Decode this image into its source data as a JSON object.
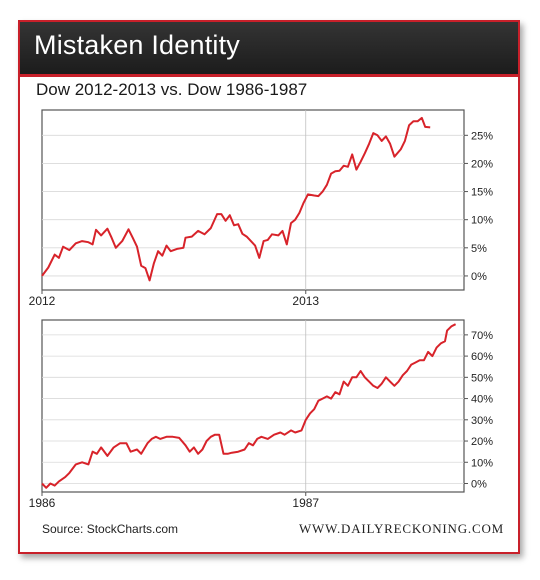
{
  "header": {
    "title": "Mistaken Identity"
  },
  "subtitle": "Dow 2012-2013 vs. Dow 1986-1987",
  "footer": {
    "source": "Source: StockCharts.com",
    "brand": "WWW.DAILYRECKONING.COM"
  },
  "colors": {
    "accent": "#c8202a",
    "line": "#d8232a",
    "header_bg": "#262626"
  },
  "chart_data": [
    {
      "type": "line",
      "title": "",
      "xlabel": "",
      "ylabel": "",
      "ylim": [
        -2.5,
        29.5
      ],
      "yticks": [
        0,
        5,
        10,
        15,
        20,
        25
      ],
      "ytick_labels": [
        "0%",
        "5%",
        "10%",
        "15%",
        "20%",
        "25%"
      ],
      "xlim": [
        0,
        100
      ],
      "x_tick_positions": [
        0,
        62.5
      ],
      "x_tick_labels": [
        "2012",
        "2013"
      ],
      "grid": true,
      "series": [
        {
          "values": [
            [
              0,
              0
            ],
            [
              1.5,
              1.5
            ],
            [
              3,
              3.8
            ],
            [
              4,
              3.2
            ],
            [
              5,
              5.2
            ],
            [
              6.5,
              4.6
            ],
            [
              8,
              5.8
            ],
            [
              9.5,
              6.2
            ],
            [
              11,
              6
            ],
            [
              12,
              5.6
            ],
            [
              12.8,
              8.2
            ],
            [
              14,
              7.2
            ],
            [
              15.5,
              8.4
            ],
            [
              16.5,
              6.8
            ],
            [
              17.5,
              5
            ],
            [
              19,
              6.2
            ],
            [
              20.5,
              8.3
            ],
            [
              21.5,
              6.8
            ],
            [
              22.5,
              5.2
            ],
            [
              23.5,
              1.8
            ],
            [
              24.5,
              1.4
            ],
            [
              25.5,
              -0.8
            ],
            [
              26.5,
              2.2
            ],
            [
              27.5,
              4.4
            ],
            [
              28.5,
              3.6
            ],
            [
              29.5,
              5.4
            ],
            [
              30.5,
              4.4
            ],
            [
              32,
              4.8
            ],
            [
              33.5,
              5
            ],
            [
              34,
              6.8
            ],
            [
              35.5,
              7
            ],
            [
              37,
              8
            ],
            [
              38.5,
              7.4
            ],
            [
              40,
              8.5
            ],
            [
              41.5,
              11
            ],
            [
              42.5,
              11
            ],
            [
              43.5,
              9.8
            ],
            [
              44.5,
              10.8
            ],
            [
              45.5,
              9
            ],
            [
              46.5,
              9.2
            ],
            [
              47.5,
              7.5
            ],
            [
              48.5,
              7
            ],
            [
              50.5,
              5.4
            ],
            [
              51.5,
              3.2
            ],
            [
              52.5,
              6.2
            ],
            [
              53.5,
              6.4
            ],
            [
              54.5,
              7.4
            ],
            [
              56,
              7.2
            ],
            [
              57,
              8
            ],
            [
              58,
              5.6
            ],
            [
              59,
              9.4
            ],
            [
              60,
              10
            ],
            [
              61,
              11.2
            ],
            [
              62,
              13
            ],
            [
              63,
              14.5
            ],
            [
              64.5,
              14.3
            ],
            [
              65.5,
              14.2
            ],
            [
              66.5,
              15
            ],
            [
              67.5,
              16.2
            ],
            [
              68.5,
              18.2
            ],
            [
              69.5,
              18.6
            ],
            [
              70.5,
              18.7
            ],
            [
              71.5,
              19.6
            ],
            [
              72.5,
              19.4
            ],
            [
              73.5,
              21.6
            ],
            [
              74.5,
              18.9
            ],
            [
              75.5,
              20.3
            ],
            [
              76.5,
              21.8
            ],
            [
              77.5,
              23.5
            ],
            [
              78.5,
              25.4
            ],
            [
              79.5,
              25
            ],
            [
              80.5,
              24
            ],
            [
              81.5,
              24.8
            ],
            [
              82.5,
              23.5
            ],
            [
              83.5,
              21.2
            ],
            [
              85,
              22.5
            ],
            [
              86,
              24
            ],
            [
              87,
              26.8
            ],
            [
              88,
              27.5
            ],
            [
              89,
              27.5
            ],
            [
              90,
              28.1
            ],
            [
              90.8,
              26.5
            ],
            [
              92,
              26.4
            ]
          ]
        }
      ]
    },
    {
      "type": "line",
      "title": "",
      "xlabel": "",
      "ylabel": "",
      "ylim": [
        -4,
        77
      ],
      "yticks": [
        0,
        10,
        20,
        30,
        40,
        50,
        60,
        70
      ],
      "ytick_labels": [
        "0%",
        "10%",
        "20%",
        "30%",
        "40%",
        "50%",
        "60%",
        "70%"
      ],
      "xlim": [
        0,
        100
      ],
      "x_tick_positions": [
        0,
        62.5
      ],
      "x_tick_labels": [
        "1986",
        "1987"
      ],
      "grid": true,
      "series": [
        {
          "values": [
            [
              0,
              0
            ],
            [
              1,
              -2
            ],
            [
              2,
              0
            ],
            [
              3,
              -1
            ],
            [
              4,
              1
            ],
            [
              5.5,
              3
            ],
            [
              6.5,
              5
            ],
            [
              8,
              9
            ],
            [
              9.5,
              10
            ],
            [
              11,
              9
            ],
            [
              12,
              15
            ],
            [
              13,
              14
            ],
            [
              14,
              17
            ],
            [
              15.5,
              13
            ],
            [
              17,
              17
            ],
            [
              18.5,
              19
            ],
            [
              20,
              19
            ],
            [
              21,
              15
            ],
            [
              22.5,
              16
            ],
            [
              23.5,
              14
            ],
            [
              25,
              19
            ],
            [
              26,
              21
            ],
            [
              27,
              22
            ],
            [
              28,
              21
            ],
            [
              29.5,
              22
            ],
            [
              31,
              22
            ],
            [
              32.5,
              21.5
            ],
            [
              34,
              18
            ],
            [
              35,
              15
            ],
            [
              36,
              17
            ],
            [
              37,
              14
            ],
            [
              38,
              16
            ],
            [
              39,
              20
            ],
            [
              40,
              22
            ],
            [
              41,
              23
            ],
            [
              42,
              23
            ],
            [
              43,
              14
            ],
            [
              44,
              14
            ],
            [
              45,
              14.5
            ],
            [
              46.5,
              15
            ],
            [
              48,
              16
            ],
            [
              49,
              19
            ],
            [
              50,
              18
            ],
            [
              51,
              21
            ],
            [
              52,
              22
            ],
            [
              53.5,
              21
            ],
            [
              55,
              23
            ],
            [
              56.5,
              24
            ],
            [
              57.5,
              23
            ],
            [
              59,
              25
            ],
            [
              60,
              24
            ],
            [
              61.5,
              25
            ],
            [
              62.5,
              30
            ],
            [
              63.5,
              33
            ],
            [
              64.5,
              35
            ],
            [
              65.5,
              39
            ],
            [
              66.5,
              40
            ],
            [
              67.5,
              41
            ],
            [
              68.5,
              40
            ],
            [
              69.5,
              43
            ],
            [
              70.5,
              42
            ],
            [
              71.5,
              48
            ],
            [
              72.5,
              46
            ],
            [
              73.5,
              50
            ],
            [
              74.5,
              50
            ],
            [
              75.5,
              53
            ],
            [
              76.5,
              50
            ],
            [
              77.5,
              48
            ],
            [
              78.5,
              46
            ],
            [
              79.5,
              45
            ],
            [
              80.5,
              47
            ],
            [
              81.5,
              50
            ],
            [
              82.5,
              48
            ],
            [
              83.5,
              46
            ],
            [
              84.5,
              48
            ],
            [
              85.5,
              51
            ],
            [
              86.5,
              53
            ],
            [
              87.5,
              56
            ],
            [
              88.5,
              57
            ],
            [
              89.5,
              58
            ],
            [
              90.5,
              58
            ],
            [
              91.5,
              62
            ],
            [
              92.5,
              60
            ],
            [
              93.5,
              64
            ],
            [
              94.5,
              66
            ],
            [
              95.5,
              67
            ],
            [
              96,
              72
            ],
            [
              97,
              74
            ],
            [
              98,
              75
            ]
          ]
        }
      ]
    }
  ]
}
